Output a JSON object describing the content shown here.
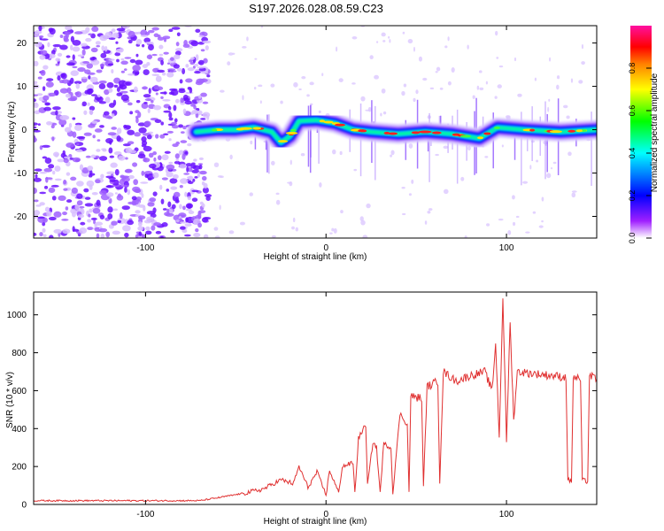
{
  "title": "S197.2026.028.08.59.C23",
  "chart_data": [
    {
      "type": "heatmap",
      "xlabel": "Height of straight line (km)",
      "ylabel": "Frequency (Hz)",
      "xlim": [
        -162,
        150
      ],
      "ylim": [
        -25,
        24
      ],
      "xticks": [
        -100,
        0,
        100
      ],
      "yticks": [
        -20,
        -10,
        0,
        10,
        20
      ],
      "ridge": [
        {
          "x": -72,
          "y": -0.5
        },
        {
          "x": -60,
          "y": 0.0
        },
        {
          "x": -50,
          "y": 0.0
        },
        {
          "x": -40,
          "y": 0.5
        },
        {
          "x": -30,
          "y": -0.5
        },
        {
          "x": -25,
          "y": -3.0
        },
        {
          "x": -20,
          "y": -1.5
        },
        {
          "x": -15,
          "y": 2.0
        },
        {
          "x": -5,
          "y": 2.2
        },
        {
          "x": 5,
          "y": 1.5
        },
        {
          "x": 15,
          "y": 0.0
        },
        {
          "x": 25,
          "y": -0.5
        },
        {
          "x": 40,
          "y": -1.0
        },
        {
          "x": 55,
          "y": -0.5
        },
        {
          "x": 70,
          "y": -1.0
        },
        {
          "x": 85,
          "y": -2.0
        },
        {
          "x": 95,
          "y": 0.5
        },
        {
          "x": 110,
          "y": 0.0
        },
        {
          "x": 130,
          "y": -0.5
        },
        {
          "x": 150,
          "y": 0.0
        }
      ],
      "colorbar": {
        "label": "Normalized spectral amplitude",
        "range": [
          0.0,
          1.0
        ],
        "ticks": [
          "0.0",
          "0.2",
          "0.4",
          "0.6",
          "0.8"
        ],
        "tick_values": [
          0.0,
          0.2,
          0.4,
          0.6,
          0.8
        ],
        "colors": [
          "#ffffff",
          "#8a00ff",
          "#0000ff",
          "#00ffff",
          "#00ff00",
          "#ffff00",
          "#ff8000",
          "#ff0000",
          "#ff00a0"
        ]
      }
    },
    {
      "type": "line",
      "xlabel": "Height of straight line (km)",
      "ylabel": "SNR (10 * v/v)",
      "xlim": [
        -162,
        150
      ],
      "ylim": [
        0,
        1120
      ],
      "xticks": [
        -100,
        0,
        100
      ],
      "yticks": [
        0,
        200,
        400,
        600,
        800,
        1000
      ],
      "color": "#e03030",
      "series": [
        {
          "x": -162,
          "y": 20
        },
        {
          "x": -70,
          "y": 20
        },
        {
          "x": -60,
          "y": 35
        },
        {
          "x": -45,
          "y": 60
        },
        {
          "x": -35,
          "y": 80
        },
        {
          "x": -25,
          "y": 130
        },
        {
          "x": -18,
          "y": 110
        },
        {
          "x": -15,
          "y": 200
        },
        {
          "x": -10,
          "y": 90
        },
        {
          "x": -5,
          "y": 170
        },
        {
          "x": 0,
          "y": 50
        },
        {
          "x": 2,
          "y": 180
        },
        {
          "x": 7,
          "y": 60
        },
        {
          "x": 9,
          "y": 200
        },
        {
          "x": 15,
          "y": 220
        },
        {
          "x": 16,
          "y": 60
        },
        {
          "x": 18,
          "y": 350
        },
        {
          "x": 22,
          "y": 420
        },
        {
          "x": 23,
          "y": 100
        },
        {
          "x": 26,
          "y": 330
        },
        {
          "x": 28,
          "y": 300
        },
        {
          "x": 30,
          "y": 60
        },
        {
          "x": 32,
          "y": 320
        },
        {
          "x": 36,
          "y": 300
        },
        {
          "x": 37,
          "y": 60
        },
        {
          "x": 41,
          "y": 480
        },
        {
          "x": 45,
          "y": 420
        },
        {
          "x": 46,
          "y": 60
        },
        {
          "x": 47,
          "y": 570
        },
        {
          "x": 53,
          "y": 560
        },
        {
          "x": 54,
          "y": 90
        },
        {
          "x": 56,
          "y": 620
        },
        {
          "x": 62,
          "y": 650
        },
        {
          "x": 63,
          "y": 120
        },
        {
          "x": 65,
          "y": 700
        },
        {
          "x": 72,
          "y": 650
        },
        {
          "x": 80,
          "y": 680
        },
        {
          "x": 88,
          "y": 700
        },
        {
          "x": 92,
          "y": 600
        },
        {
          "x": 94,
          "y": 850
        },
        {
          "x": 96,
          "y": 350
        },
        {
          "x": 98,
          "y": 1100
        },
        {
          "x": 100,
          "y": 330
        },
        {
          "x": 102,
          "y": 950
        },
        {
          "x": 104,
          "y": 450
        },
        {
          "x": 106,
          "y": 700
        },
        {
          "x": 115,
          "y": 690
        },
        {
          "x": 125,
          "y": 680
        },
        {
          "x": 133,
          "y": 670
        },
        {
          "x": 134,
          "y": 130
        },
        {
          "x": 136,
          "y": 120
        },
        {
          "x": 137,
          "y": 670
        },
        {
          "x": 141,
          "y": 660
        },
        {
          "x": 142,
          "y": 130
        },
        {
          "x": 145,
          "y": 120
        },
        {
          "x": 146,
          "y": 680
        },
        {
          "x": 150,
          "y": 660
        }
      ]
    }
  ]
}
